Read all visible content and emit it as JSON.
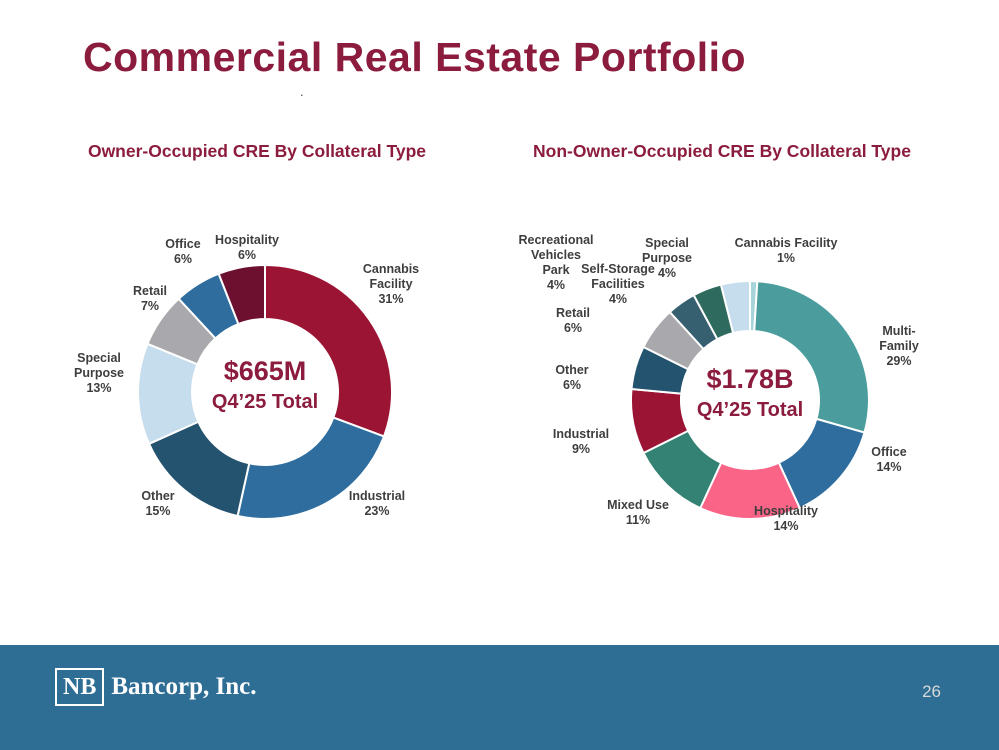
{
  "colors": {
    "accent_maroon": "#8c1c3d",
    "footer_blue": "#2e6d94",
    "label_gray": "#3e3e3e"
  },
  "slide": {
    "title": "Commercial Real Estate Portfolio",
    "stray_period": ".",
    "page_number": "26"
  },
  "footer": {
    "logo_monogram": "NB",
    "logo_text": "Bancorp, Inc."
  },
  "chart_data": [
    {
      "type": "pie",
      "variant": "donut",
      "title": "Owner-Occupied CRE By Collateral Type",
      "center_value": "$665M",
      "center_label": "Q4’25 Total",
      "unit": "percent",
      "segments": [
        {
          "label": "Cannabis Facility",
          "pct": 31,
          "color": "#9b1434",
          "callout": "Cannabis\nFacility\n31%"
        },
        {
          "label": "Industrial",
          "pct": 23,
          "color": "#2e6d9e",
          "callout": "Industrial\n23%"
        },
        {
          "label": "Other",
          "pct": 15,
          "color": "#24536f",
          "callout": "Other\n15%"
        },
        {
          "label": "Special Purpose",
          "pct": 13,
          "color": "#c6dded",
          "callout": "Special\nPurpose\n13%"
        },
        {
          "label": "Retail",
          "pct": 7,
          "color": "#a9a9ad",
          "callout": "Retail\n7%"
        },
        {
          "label": "Office",
          "pct": 6,
          "color": "#2e6d9e",
          "callout": "Office\n6%"
        },
        {
          "label": "Hospitality",
          "pct": 6,
          "color": "#6d1030",
          "callout": "Hospitality\n6%"
        }
      ]
    },
    {
      "type": "pie",
      "variant": "donut",
      "title": "Non-Owner-Occupied CRE By Collateral Type",
      "center_value": "$1.78B",
      "center_label": "Q4’25 Total",
      "unit": "percent",
      "segments": [
        {
          "label": "Cannabis Facility",
          "pct": 1,
          "color": "#a8d3da",
          "callout": "Cannabis Facility\n1%"
        },
        {
          "label": "Multi-Family",
          "pct": 29,
          "color": "#4b9d9d",
          "callout": "Multi-\nFamily\n29%"
        },
        {
          "label": "Office",
          "pct": 14,
          "color": "#2e6d9e",
          "callout": "Office\n14%"
        },
        {
          "label": "Hospitality",
          "pct": 14,
          "color": "#f96487",
          "callout": "Hospitality\n14%"
        },
        {
          "label": "Mixed Use",
          "pct": 11,
          "color": "#338273",
          "callout": "Mixed Use\n11%"
        },
        {
          "label": "Industrial",
          "pct": 9,
          "color": "#9b1434",
          "callout": "Industrial\n9%"
        },
        {
          "label": "Other",
          "pct": 6,
          "color": "#24536f",
          "callout": "Other\n6%"
        },
        {
          "label": "Retail",
          "pct": 6,
          "color": "#a9a9ad",
          "callout": "Retail\n6%"
        },
        {
          "label": "Recreational Vehicles Park",
          "pct": 4,
          "color": "#365f70",
          "callout": "Recreational\nVehicles\nPark\n4%"
        },
        {
          "label": "Self-Storage Facilities",
          "pct": 4,
          "color": "#2e6b5e",
          "callout": "Self-Storage\nFacilities\n4%"
        },
        {
          "label": "Special Purpose",
          "pct": 4,
          "color": "#c6dded",
          "callout": "Special\nPurpose\n4%"
        }
      ]
    }
  ]
}
